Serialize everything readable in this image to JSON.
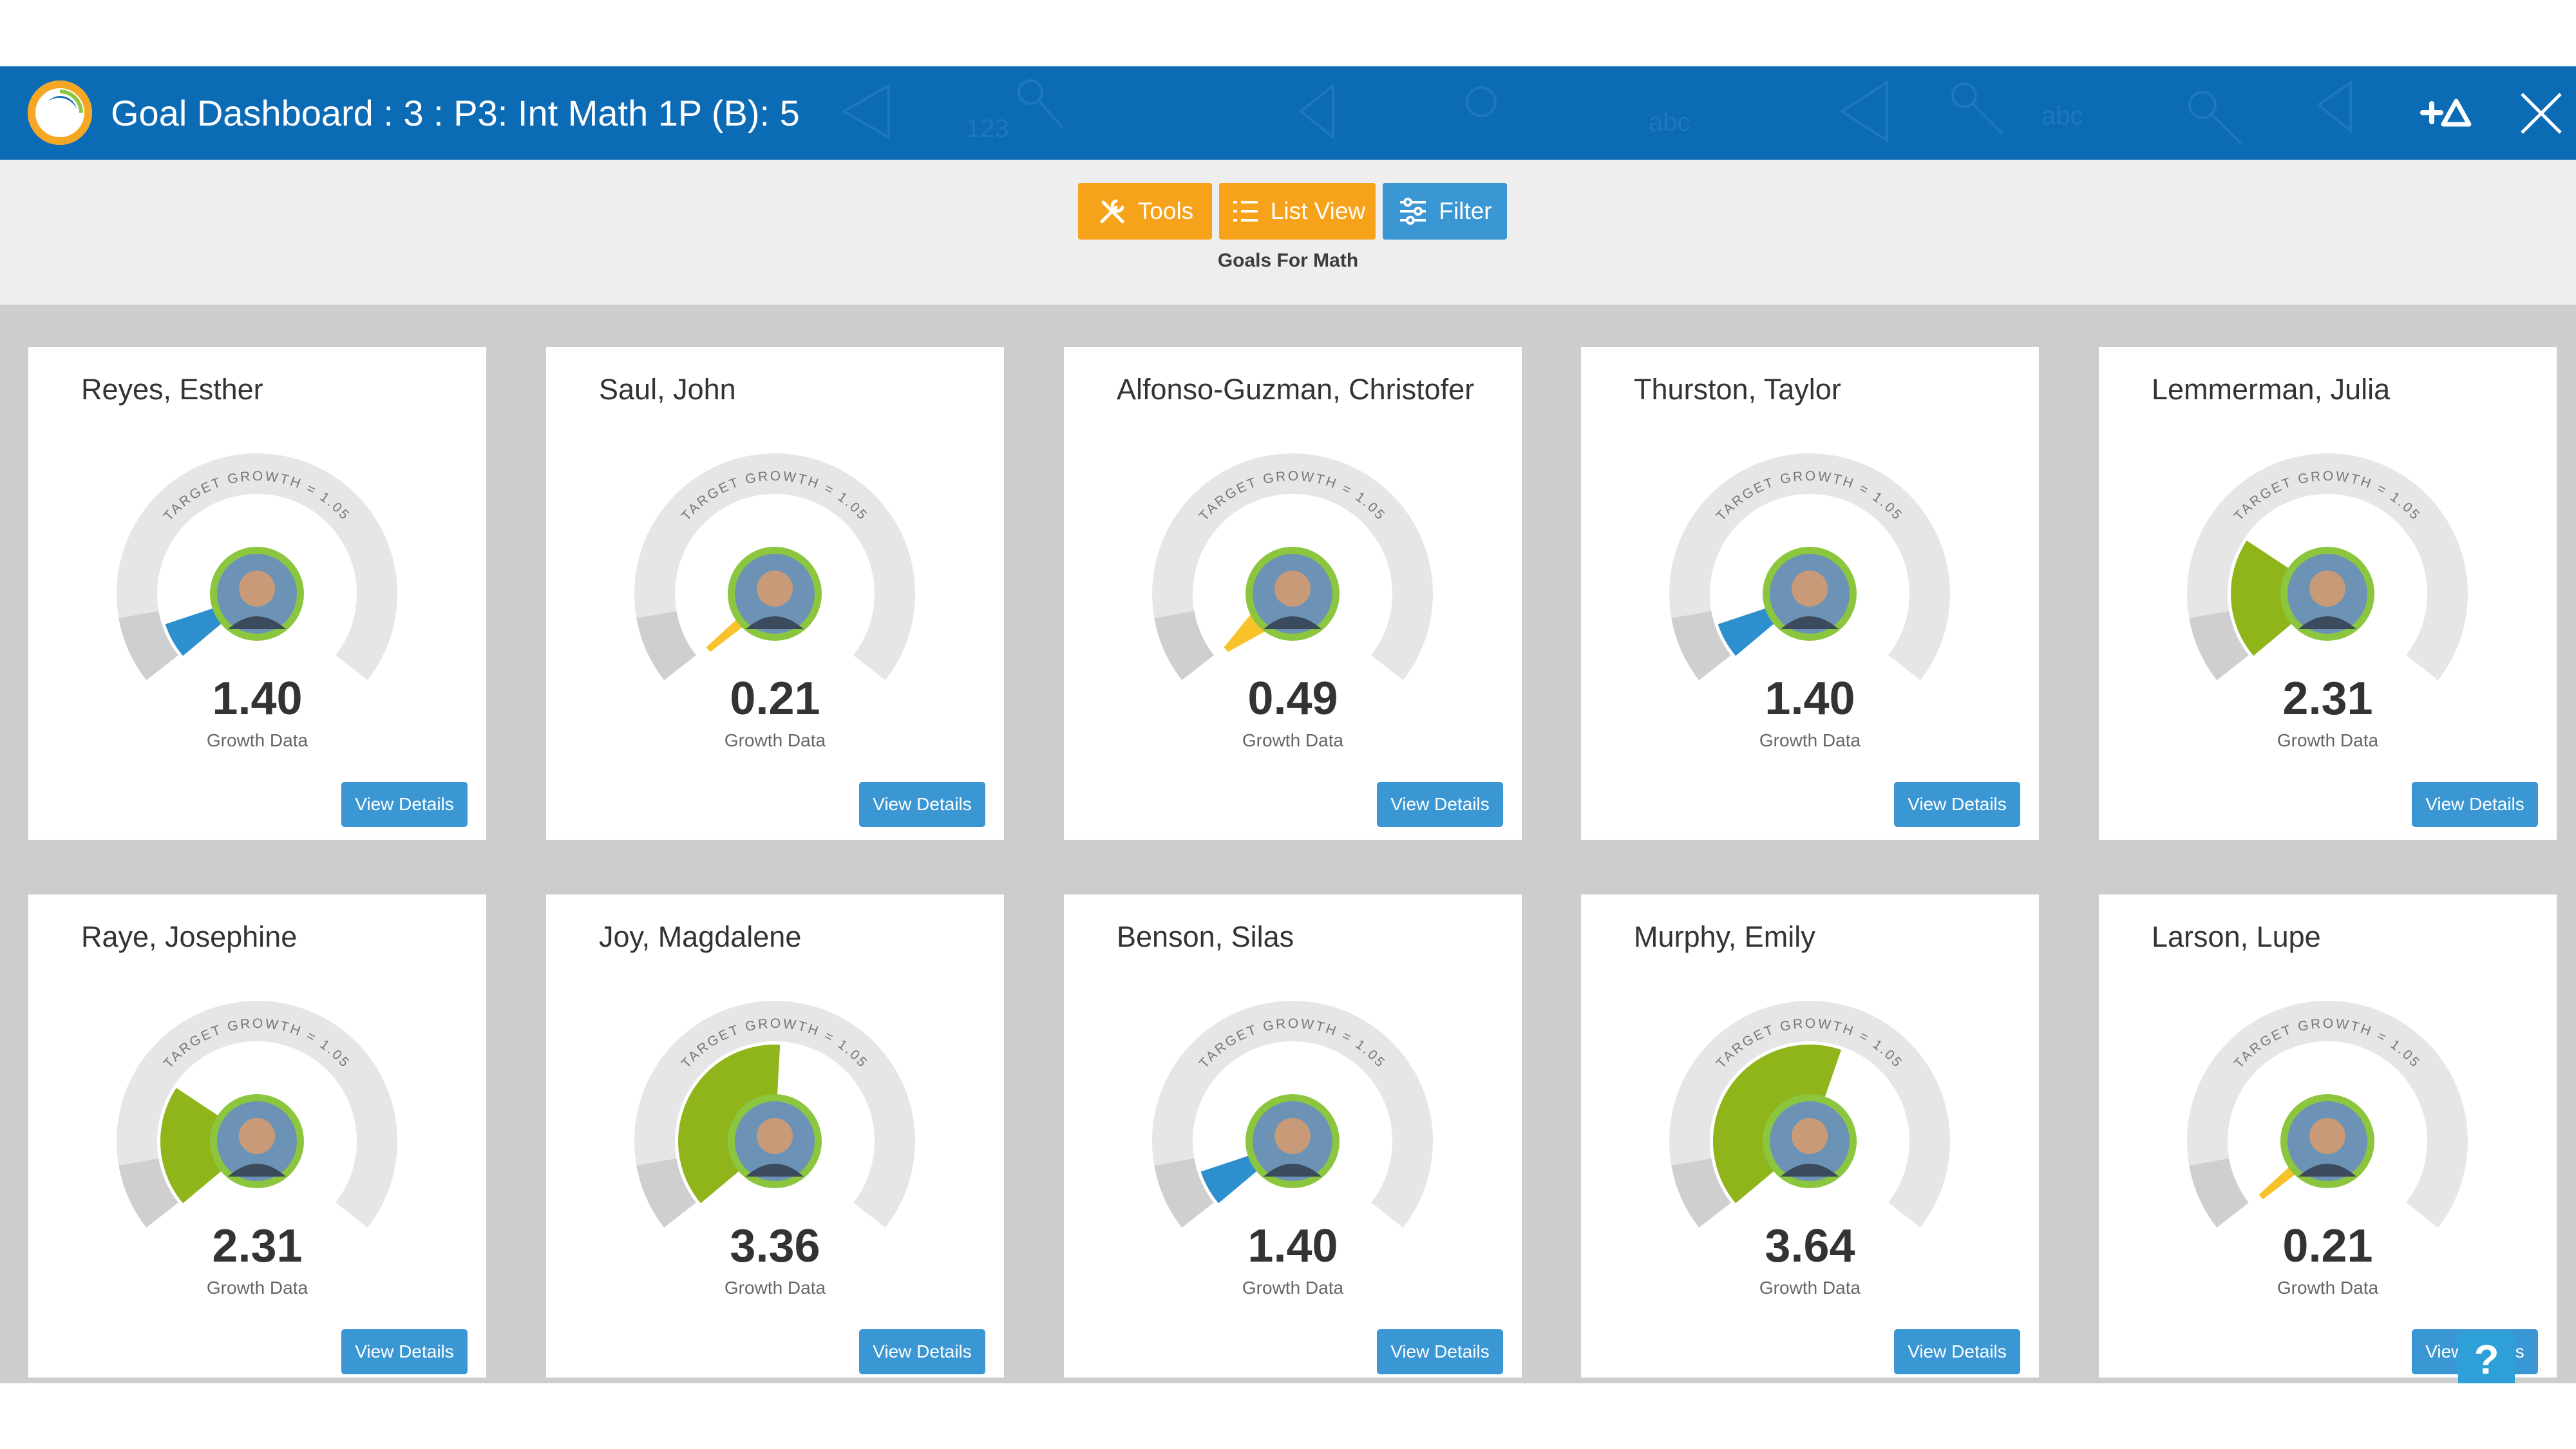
{
  "header": {
    "title": "Goal Dashboard : 3 : P3: Int Math 1P (B): 5",
    "bg_color": "#0c6bb5"
  },
  "toolbar": {
    "tools_label": "Tools",
    "list_view_label": "List View",
    "filter_label": "Filter",
    "subtitle": "Goals For Math"
  },
  "gauge": {
    "target_text": "TARGET GROWTH = 1.05",
    "value_caption": "Growth Data",
    "button_label": "View Details",
    "colors": {
      "track": "#e6e6e6",
      "low_zone": "#cfcfcf",
      "yellow": "#f8c22a",
      "blue": "#2d8fcd",
      "green": "#8fb51a",
      "avatar_ring": "#8cc63f"
    }
  },
  "students": [
    {
      "name": "Reyes, Esther",
      "growth": "1.40",
      "level": 1.4,
      "color": "blue"
    },
    {
      "name": "Saul, John",
      "growth": "0.21",
      "level": 0.21,
      "color": "yellow"
    },
    {
      "name": "Alfonso-Guzman, Christofer",
      "growth": "0.49",
      "level": 0.49,
      "color": "yellow"
    },
    {
      "name": "Thurston, Taylor",
      "growth": "1.40",
      "level": 1.4,
      "color": "blue"
    },
    {
      "name": "Lemmerman, Julia",
      "growth": "2.31",
      "level": 2.31,
      "color": "green"
    },
    {
      "name": "Raye, Josephine",
      "growth": "2.31",
      "level": 2.31,
      "color": "green"
    },
    {
      "name": "Joy, Magdalene",
      "growth": "3.36",
      "level": 3.36,
      "color": "green"
    },
    {
      "name": "Benson, Silas",
      "growth": "1.40",
      "level": 1.4,
      "color": "blue"
    },
    {
      "name": "Murphy, Emily",
      "growth": "3.64",
      "level": 3.64,
      "color": "green"
    },
    {
      "name": "Larson, Lupe",
      "growth": "0.21",
      "level": 0.21,
      "color": "yellow"
    }
  ],
  "help_label": "?"
}
